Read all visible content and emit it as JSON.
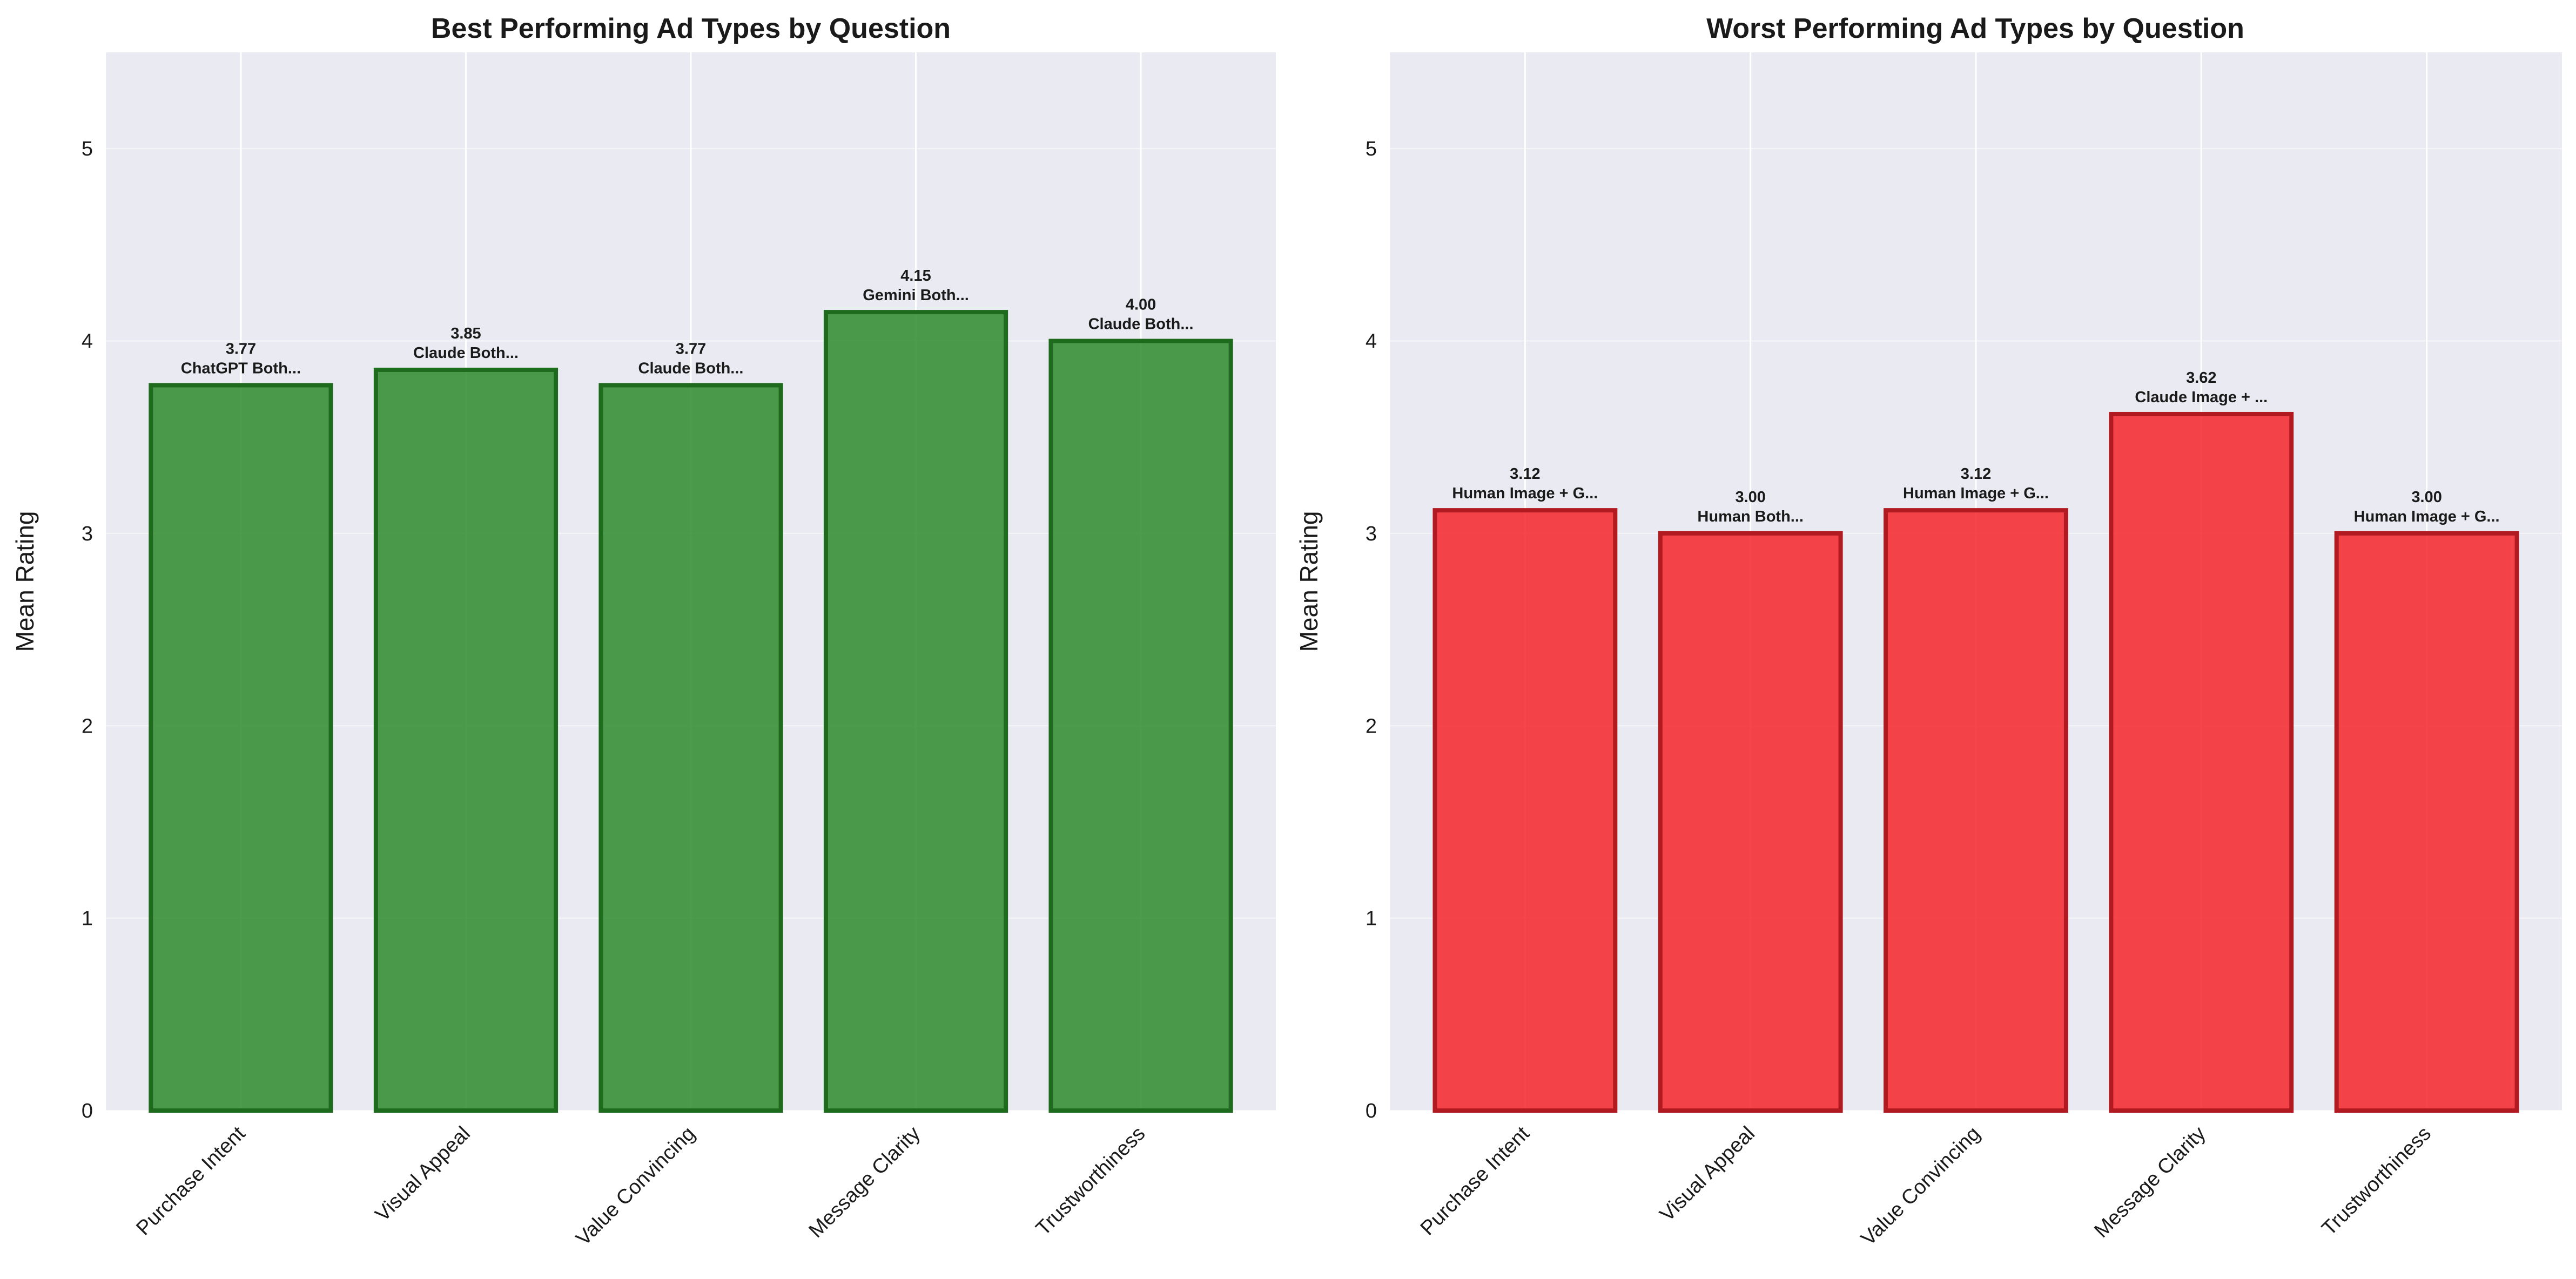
{
  "chart_data": [
    {
      "type": "bar",
      "title": "Best Performing Ad Types by Question",
      "ylabel": "Mean Rating",
      "xlabel": "",
      "ylim": [
        0,
        5.5
      ],
      "yticks": [
        0,
        1,
        2,
        3,
        4,
        5
      ],
      "grid": true,
      "categories": [
        "Purchase Intent",
        "Visual Appeal",
        "Value Convincing",
        "Message Clarity",
        "Trustworthiness"
      ],
      "values": [
        3.77,
        3.85,
        3.77,
        4.15,
        4.0
      ],
      "value_labels": [
        "3.77",
        "3.85",
        "3.77",
        "4.15",
        "4.00"
      ],
      "bar_labels": [
        "ChatGPT Both...",
        "Claude Both...",
        "Claude Both...",
        "Gemini Both...",
        "Claude Both..."
      ],
      "bar_color": "#2e8b2e",
      "edge_color": "#1e6b1e"
    },
    {
      "type": "bar",
      "title": "Worst Performing Ad Types by Question",
      "ylabel": "Mean Rating",
      "xlabel": "",
      "ylim": [
        0,
        5.5
      ],
      "yticks": [
        0,
        1,
        2,
        3,
        4,
        5
      ],
      "grid": true,
      "categories": [
        "Purchase Intent",
        "Visual Appeal",
        "Value Convincing",
        "Message Clarity",
        "Trustworthiness"
      ],
      "values": [
        3.12,
        3.0,
        3.12,
        3.62,
        3.0
      ],
      "value_labels": [
        "3.12",
        "3.00",
        "3.12",
        "3.62",
        "3.00"
      ],
      "bar_labels": [
        "Human Image + G...",
        "Human Both...",
        "Human Image + G...",
        "Claude Image + ...",
        "Human Image + G..."
      ],
      "bar_color": "#f5262b",
      "edge_color": "#b01a20"
    }
  ],
  "style": {
    "plot_background": "#eaeaf2",
    "grid_color": "#ffffff",
    "text_color": "#1a1a1a"
  }
}
